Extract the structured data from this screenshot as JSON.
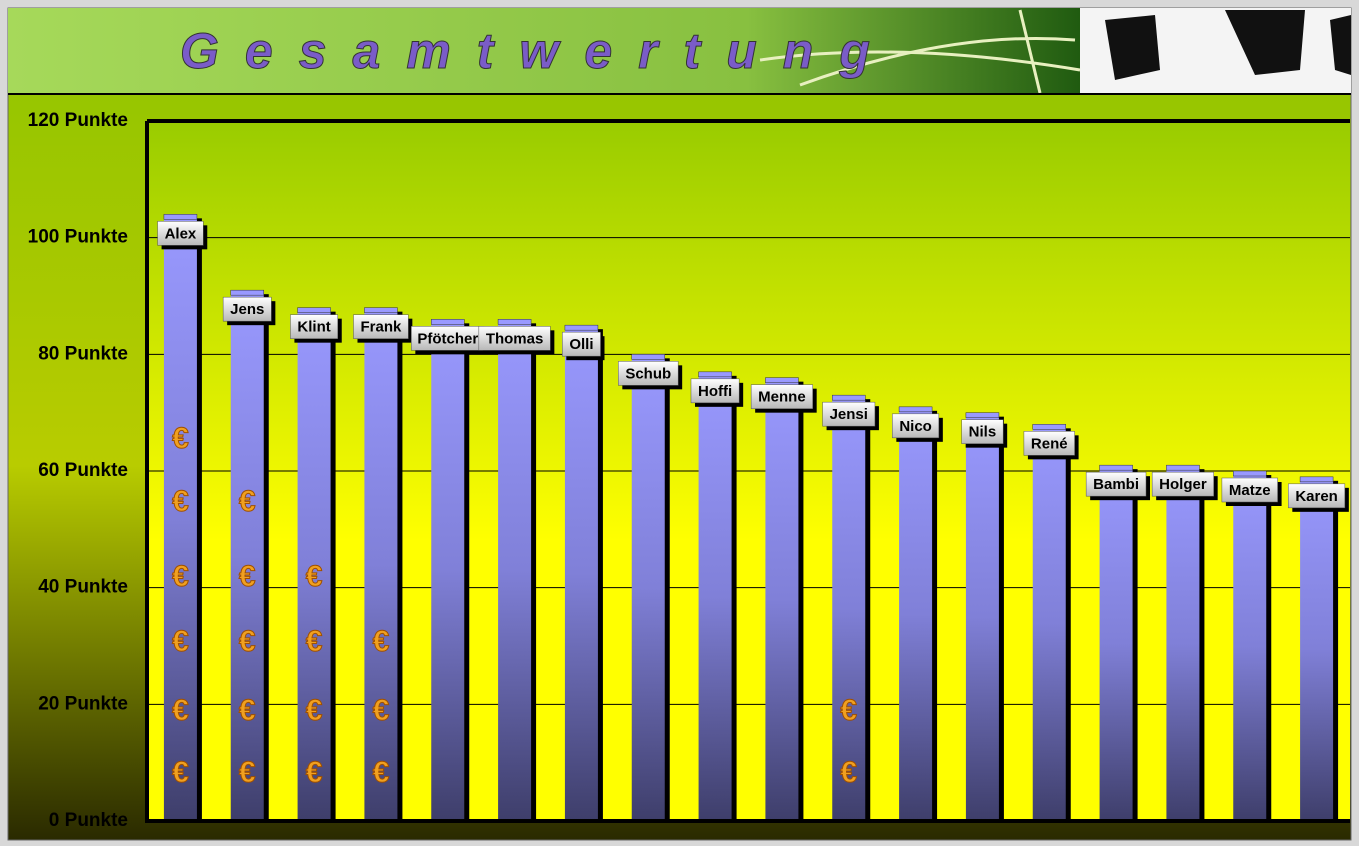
{
  "chart_data": {
    "type": "bar",
    "title": "Gesamtwertung",
    "categories": [
      "Alex",
      "Jens",
      "Klint",
      "Frank",
      "Pfötcher",
      "Thomas",
      "Olli",
      "Schub",
      "Hoffi",
      "Menne",
      "Jensi",
      "Nico",
      "Nils",
      "René",
      "Bambi",
      "Holger",
      "Matze",
      "Karen"
    ],
    "values": [
      104,
      91,
      88,
      88,
      86,
      86,
      85,
      80,
      77,
      76,
      73,
      71,
      70,
      68,
      61,
      61,
      60,
      59
    ],
    "euro_counts": [
      6,
      5,
      4,
      3,
      0,
      0,
      0,
      0,
      0,
      0,
      2,
      0,
      0,
      0,
      0,
      0,
      0,
      0
    ],
    "color": "#9999ff",
    "ylim": [
      0,
      120
    ],
    "yticks": [
      {
        "value": 0,
        "label": "0 Punkte"
      },
      {
        "value": 20,
        "label": "20 Punkte"
      },
      {
        "value": 40,
        "label": "40 Punkte"
      },
      {
        "value": 60,
        "label": "60 Punkte"
      },
      {
        "value": 80,
        "label": "80 Punkte"
      },
      {
        "value": 100,
        "label": "100 Punkte"
      },
      {
        "value": 120,
        "label": "120 Punkte"
      }
    ],
    "grid": true
  }
}
